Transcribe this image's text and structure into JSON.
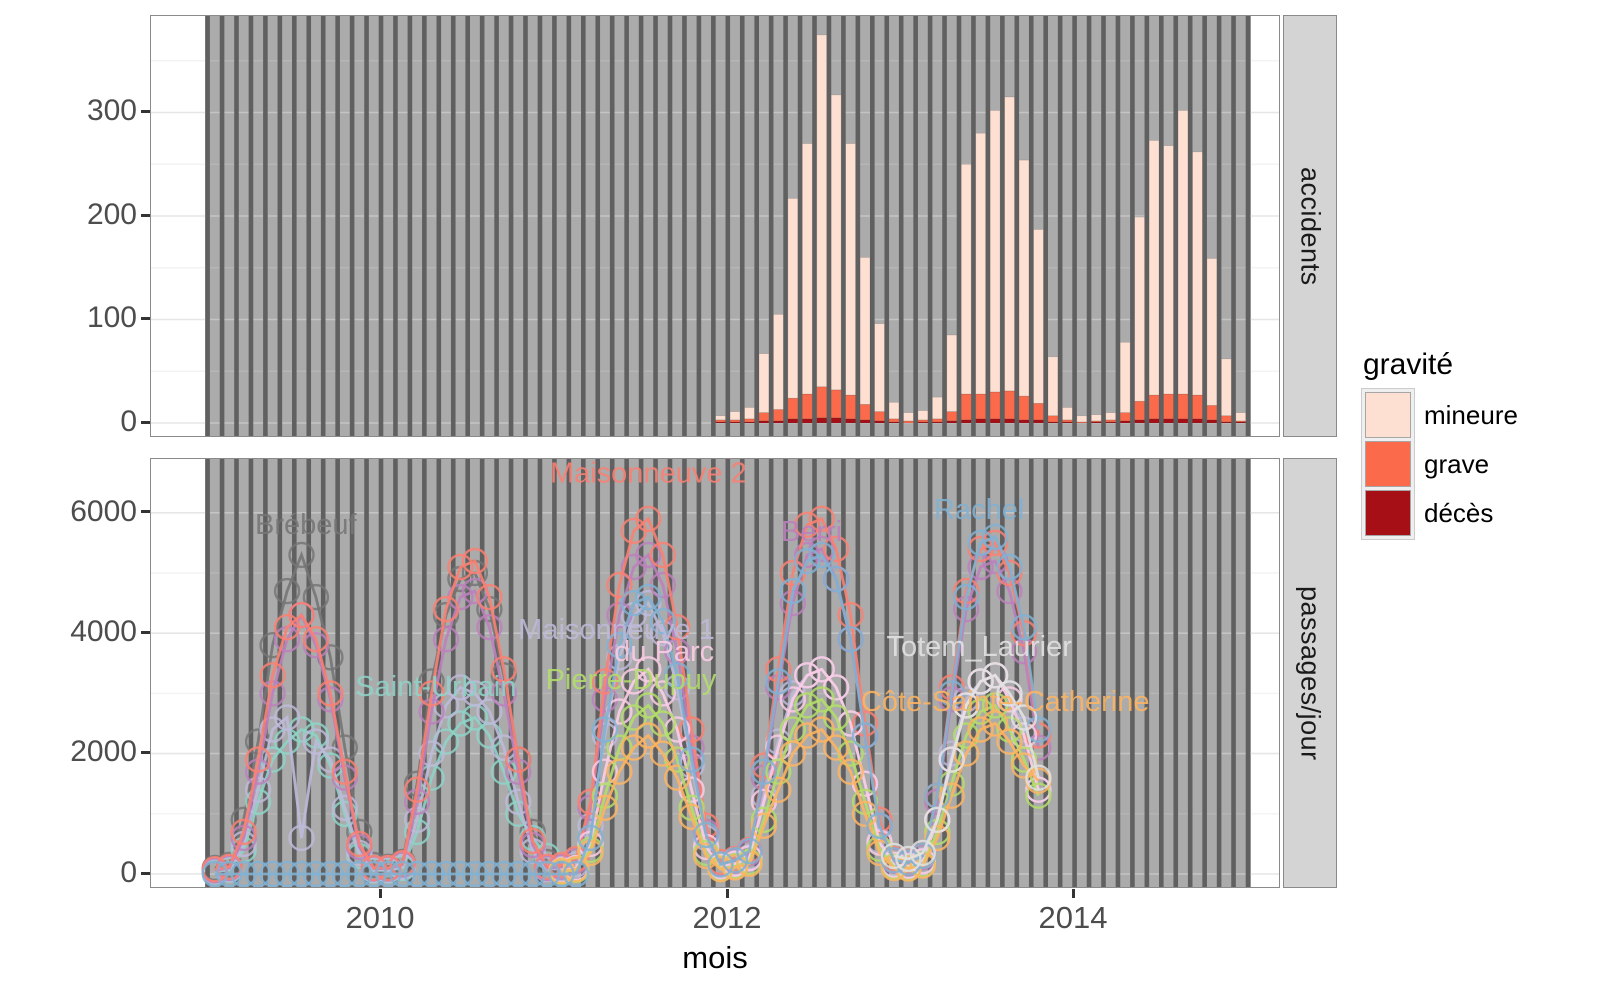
{
  "colors": {
    "panel_bg": "#ffffff",
    "band_bg": "#ababab",
    "band_stripe": "#606060",
    "grid_major": "#e6e6e6",
    "grid_minor": "#f3f3f3",
    "grid_over_major": "rgba(255,255,255,0.30)",
    "grid_over_minor": "rgba(255,255,255,0.14)",
    "strip_bg": "#d4d4d4",
    "axis_text": "#4d4d4d"
  },
  "strips": {
    "top": "accidents",
    "bottom": "passages/jour"
  },
  "legend": {
    "title": "gravité",
    "items": [
      {
        "label": "mineure",
        "color": "#FDE0D2"
      },
      {
        "label": "grave",
        "color": "#FB6A4A"
      },
      {
        "label": "décès",
        "color": "#A50F15"
      }
    ]
  },
  "axes": {
    "x": {
      "title": "mois",
      "ticks": [
        "2010",
        "2012",
        "2014"
      ],
      "tick_month_index": [
        12,
        36,
        60
      ]
    },
    "y_top": {
      "ticks": [
        "0",
        "100",
        "200",
        "300"
      ],
      "values": [
        0,
        100,
        200,
        300
      ],
      "minor": [
        50,
        150,
        250,
        350
      ]
    },
    "y_bottom": {
      "ticks": [
        "0",
        "2000",
        "4000",
        "6000"
      ],
      "values": [
        0,
        2000,
        4000,
        6000
      ],
      "minor": [
        1000,
        3000,
        5000
      ]
    }
  },
  "chart_data": [
    {
      "type": "bar",
      "panel": "accidents",
      "stacked": true,
      "x_start_month": "2011-12",
      "start_index": 35,
      "months": [
        "2011-12",
        "2012-01",
        "2012-02",
        "2012-03",
        "2012-04",
        "2012-05",
        "2012-06",
        "2012-07",
        "2012-08",
        "2012-09",
        "2012-10",
        "2012-11",
        "2012-12",
        "2013-01",
        "2013-02",
        "2013-03",
        "2013-04",
        "2013-05",
        "2013-06",
        "2013-07",
        "2013-08",
        "2013-09",
        "2013-10",
        "2013-11",
        "2013-12",
        "2014-01",
        "2014-02",
        "2014-03",
        "2014-04",
        "2014-05",
        "2014-06",
        "2014-07",
        "2014-08",
        "2014-09",
        "2014-10",
        "2014-11",
        "2014-12"
      ],
      "series": [
        {
          "name": "décès",
          "color": "#A50F15",
          "values": [
            1,
            1,
            1,
            2,
            2,
            4,
            4,
            5,
            5,
            4,
            3,
            2,
            1,
            0,
            1,
            1,
            2,
            3,
            4,
            4,
            4,
            3,
            3,
            1,
            1,
            0,
            1,
            1,
            2,
            3,
            4,
            4,
            4,
            4,
            3,
            1,
            1
          ]
        },
        {
          "name": "grave",
          "color": "#FB6A4A",
          "values": [
            2,
            2,
            3,
            8,
            11,
            20,
            24,
            30,
            27,
            23,
            15,
            9,
            3,
            2,
            2,
            3,
            9,
            25,
            24,
            26,
            27,
            23,
            16,
            6,
            2,
            1,
            1,
            2,
            8,
            18,
            23,
            24,
            24,
            23,
            14,
            6,
            1
          ]
        },
        {
          "name": "mineure",
          "color": "#FDE0D2",
          "values": [
            4,
            8,
            11,
            57,
            92,
            193,
            242,
            340,
            285,
            243,
            142,
            85,
            16,
            8,
            9,
            21,
            74,
            222,
            252,
            272,
            284,
            228,
            168,
            57,
            12,
            6,
            6,
            7,
            68,
            178,
            246,
            240,
            274,
            235,
            142,
            55,
            8
          ]
        }
      ],
      "ylim": [
        0,
        393
      ]
    },
    {
      "type": "line",
      "panel": "passages/jour",
      "x_range_months": [
        "2009-01",
        "2014-12"
      ],
      "ylim": [
        0,
        6890
      ],
      "series": [
        {
          "name": "Brébeuf",
          "color": "#757575",
          "start_month": "2009-01",
          "start_index": 0,
          "values": [
            100,
            150,
            900,
            2200,
            3800,
            4700,
            5300,
            4600,
            3600,
            2100,
            700,
            150,
            120,
            200,
            1500,
            3200,
            4300,
            4900,
            5000,
            4400,
            3300,
            1900,
            700,
            200
          ]
        },
        {
          "name": "Saint-Urbain",
          "color": "#8DD3C7",
          "start_month": "2009-01",
          "start_index": 0,
          "values": [
            40,
            70,
            400,
            1200,
            1900,
            2200,
            2400,
            2300,
            1800,
            1000,
            300,
            60,
            60,
            100,
            700,
            1600,
            2200,
            2500,
            2600,
            2300,
            1700,
            1000,
            600,
            300
          ]
        },
        {
          "name": "Maisonneuve 1",
          "color": "#BEBADA",
          "start_month": "2009-01",
          "start_index": 0,
          "values": [
            50,
            80,
            500,
            1400,
            2400,
            2600,
            600,
            2200,
            1900,
            1100,
            350,
            70,
            70,
            120,
            900,
            2000,
            2800,
            3100,
            3000,
            2700,
            2100,
            1200,
            380,
            80,
            90,
            160,
            800,
            2300,
            3600,
            4300,
            4500,
            4000,
            3100,
            1800,
            600,
            150,
            180,
            280,
            1300,
            2200,
            3000,
            3300,
            3400,
            3100,
            2500,
            1500,
            550,
            160,
            140,
            220,
            900,
            2000,
            2900,
            3200,
            3300,
            3000,
            2400,
            1400
          ]
        },
        {
          "name": "Berri",
          "color": "#BC80BD",
          "start_month": "2009-01",
          "start_index": 0,
          "values": [
            60,
            100,
            600,
            1700,
            3000,
            3900,
            4300,
            3800,
            2900,
            1600,
            450,
            90,
            90,
            160,
            1200,
            2700,
            3900,
            4600,
            4700,
            4100,
            3000,
            1700,
            480,
            100,
            120,
            220,
            1100,
            2900,
            4300,
            5100,
            5300,
            4800,
            3700,
            2100,
            700,
            180,
            220,
            350,
            1600,
            3100,
            4500,
            5300,
            5400,
            4900,
            3900,
            2300,
            800,
            220,
            180,
            280,
            1200,
            2900,
            4400,
            5100,
            5200,
            4700,
            3700,
            2100
          ]
        },
        {
          "name": "Maisonneuve 2",
          "color": "#FB8072",
          "start_month": "2009-01",
          "start_index": 0,
          "values": [
            80,
            120,
            700,
            1900,
            3300,
            4100,
            4300,
            3900,
            3000,
            1700,
            500,
            100,
            100,
            180,
            1400,
            3000,
            4400,
            5100,
            5200,
            4600,
            3400,
            1900,
            550,
            120,
            150,
            250,
            1200,
            3200,
            4800,
            5700,
            5900,
            5300,
            4100,
            2400,
            800,
            200,
            250,
            400,
            1800,
            3400,
            5000,
            5800,
            5900,
            5400,
            4300,
            2500,
            900,
            250,
            200,
            300,
            1300,
            3100,
            4700,
            5400,
            5500,
            5000,
            4000,
            2300
          ]
        },
        {
          "name": "du Parc",
          "color": "#FCCDE5",
          "start_month": "2011-01",
          "start_index": 24,
          "values": [
            60,
            100,
            500,
            1700,
            2700,
            3200,
            3400,
            3000,
            2400,
            1400,
            450,
            120,
            170,
            260,
            1200,
            2100,
            2900,
            3300,
            3400,
            3100,
            2500,
            1500,
            520,
            150,
            130,
            210,
            900,
            1900,
            2800,
            3200,
            3300,
            2900,
            2300,
            1400
          ]
        },
        {
          "name": "Pierre-Dupuy",
          "color": "#B3DE69",
          "start_month": "2011-01",
          "start_index": 24,
          "values": [
            40,
            70,
            400,
            1300,
            2100,
            2600,
            2800,
            2500,
            1900,
            1100,
            350,
            90,
            130,
            200,
            900,
            1700,
            2400,
            2800,
            2900,
            2600,
            2000,
            1200,
            420,
            120,
            100,
            160,
            700,
            1500,
            2300,
            2700,
            2800,
            2400,
            1900,
            1300
          ]
        },
        {
          "name": "Côte-Sainte-Catherine",
          "color": "#FDB462",
          "start_month": "2011-01",
          "start_index": 24,
          "values": [
            50,
            80,
            350,
            1100,
            1700,
            2100,
            2300,
            2000,
            1600,
            950,
            300,
            80,
            110,
            170,
            800,
            1400,
            2000,
            2300,
            2400,
            2100,
            1700,
            1000,
            350,
            100,
            90,
            140,
            600,
            1300,
            2000,
            2400,
            2500,
            2200,
            1800,
            1550
          ]
        },
        {
          "name": "Rachel",
          "color": "#80B1D3",
          "start_month": "2009-01",
          "start_index": 0,
          "values": [
            0,
            0,
            0,
            0,
            0,
            0,
            0,
            0,
            0,
            0,
            0,
            0,
            0,
            0,
            0,
            0,
            0,
            0,
            0,
            0,
            0,
            0,
            0,
            0,
            0,
            0,
            600,
            2400,
            3800,
            4500,
            4600,
            4200,
            3300,
            1900,
            650,
            160,
            230,
            380,
            1700,
            3200,
            4700,
            5200,
            5300,
            4900,
            3900,
            2300,
            800,
            230,
            190,
            300,
            1300,
            3000,
            4600,
            5500,
            5600,
            5100,
            4100,
            2400
          ]
        },
        {
          "name": "Totem_Laurier",
          "color": "#E2E2E2",
          "start_month": "2012-12",
          "start_index": 47,
          "values": [
            300,
            250,
            350,
            900,
            1900,
            2800,
            3200,
            3300,
            3000,
            2600,
            1600
          ]
        }
      ],
      "labels": [
        {
          "text": "Brébeuf",
          "x_month": 6.3,
          "y_value": 5650,
          "color": "#757575"
        },
        {
          "text": "Saint-Urbain",
          "x_month": 15.3,
          "y_value": 2960,
          "color": "#8DD3C7"
        },
        {
          "text": "Maisonneuve 2",
          "x_month": 30.0,
          "y_value": 6500,
          "color": "#FB8072"
        },
        {
          "text": "Maisonneuve 1",
          "x_month": 27.8,
          "y_value": 3900,
          "color": "#BEBADA"
        },
        {
          "text": "du Parc",
          "x_month": 31.1,
          "y_value": 3540,
          "color": "#FCCDE5"
        },
        {
          "text": "Pierre-Dupuy",
          "x_month": 28.8,
          "y_value": 3070,
          "color": "#B3DE69"
        },
        {
          "text": "Berri",
          "x_month": 41.3,
          "y_value": 5530,
          "color": "#BC80BD"
        },
        {
          "text": "Rachel",
          "x_month": 52.9,
          "y_value": 5900,
          "color": "#80B1D3"
        },
        {
          "text": "Totem_Laurier",
          "x_month": 52.9,
          "y_value": 3620,
          "color": "#E2E2E2"
        },
        {
          "text": "Côte-Sainte-Catherine",
          "x_month": 54.7,
          "y_value": 2710,
          "color": "#FDB462"
        }
      ]
    }
  ]
}
